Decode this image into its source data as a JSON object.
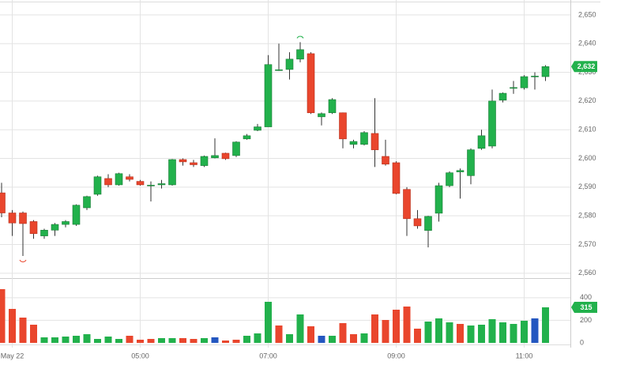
{
  "chart_data": {
    "type": "candlestick",
    "categories": [
      null,
      "May 22",
      null,
      null,
      null,
      null,
      null,
      null,
      null,
      null,
      null,
      null,
      null,
      "05:00",
      null,
      null,
      null,
      null,
      null,
      null,
      null,
      null,
      null,
      null,
      null,
      "07:00",
      null,
      null,
      null,
      null,
      null,
      null,
      null,
      null,
      null,
      null,
      null,
      "09:00",
      null,
      null,
      null,
      null,
      null,
      null,
      null,
      null,
      null,
      null,
      null,
      "11:00",
      null,
      null
    ],
    "open": [
      2588,
      2581,
      2581,
      2578,
      2573,
      2575,
      2577,
      2577,
      2582.8,
      2587.5,
      2593,
      2590.8,
      2593.6,
      2592,
      2590.5,
      2590.8,
      2590.8,
      2599.6,
      2598.5,
      2597.5,
      2600.2,
      2601.8,
      2601,
      2606.8,
      2609.8,
      2611,
      2630.7,
      2631,
      2634.6,
      2636.5,
      2614.5,
      2615.9,
      2615.9,
      2604.9,
      2604.9,
      2608.7,
      2600.7,
      2598.5,
      2589.2,
      2579,
      2574.9,
      2580.9,
      2590.5,
      2595.3,
      2594,
      2603.5,
      2604.3,
      2620.3,
      2624.5,
      2624.6,
      2628.5,
      2628.5
    ],
    "high": [
      2591.5,
      2582,
      2581.5,
      2578.5,
      2575.5,
      2577.5,
      2578.5,
      2584,
      2587,
      2594,
      2594.5,
      2595,
      2594.5,
      2592.5,
      2592,
      2592.5,
      2599.8,
      2600,
      2599.5,
      2601,
      2607,
      2602,
      2606,
      2608.5,
      2612,
      2636,
      2640,
      2637,
      2640.5,
      2637,
      2616,
      2621,
      2616,
      2606.5,
      2609.5,
      2621,
      2606.5,
      2599,
      2590,
      2582,
      2580,
      2591.5,
      2595.5,
      2596.5,
      2603.5,
      2610,
      2624,
      2623,
      2627,
      2629,
      2630,
      2632.5
    ],
    "low": [
      2579.5,
      2573,
      2566,
      2572,
      2572,
      2573,
      2576,
      2576.5,
      2582,
      2587,
      2590,
      2590.5,
      2592,
      2590.5,
      2585,
      2589.5,
      2590.5,
      2597.5,
      2597,
      2597,
      2600,
      2599.5,
      2600.5,
      2606.5,
      2609.5,
      2611,
      2630.5,
      2627.5,
      2633.5,
      2615.5,
      2611.5,
      2615.5,
      2603.5,
      2603.5,
      2604.5,
      2597,
      2597.5,
      2587.5,
      2573,
      2575.5,
      2569,
      2578,
      2590,
      2586,
      2591,
      2603,
      2603.5,
      2619.5,
      2622.5,
      2624,
      2624,
      2627
    ],
    "close": [
      2581,
      2577.5,
      2577.3,
      2573.8,
      2575,
      2577,
      2578,
      2583.7,
      2586.7,
      2593.6,
      2590.8,
      2594.7,
      2592.7,
      2590.8,
      2590.7,
      2591.2,
      2599.6,
      2598.8,
      2597.8,
      2600.7,
      2601,
      2599.9,
      2605.7,
      2607.9,
      2611,
      2632.7,
      2630.9,
      2634.6,
      2637.9,
      2615.9,
      2615.6,
      2620.5,
      2606.8,
      2605.9,
      2609,
      2603,
      2598,
      2587.8,
      2579,
      2576.5,
      2579.8,
      2590.5,
      2595,
      2595.8,
      2603,
      2607.9,
      2620,
      2622.7,
      2624.7,
      2628.5,
      2628.7,
      2632
    ],
    "volume": [
      476,
      301,
      224,
      161,
      49,
      49,
      56,
      63,
      77,
      35,
      56,
      35,
      63,
      28,
      35,
      42,
      42,
      42,
      35,
      42,
      49,
      21,
      28,
      63,
      84,
      364,
      154,
      77,
      252,
      147,
      63,
      63,
      175,
      77,
      84,
      252,
      203,
      294,
      322,
      126,
      189,
      217,
      182,
      168,
      154,
      161,
      210,
      182,
      168,
      196,
      217,
      315
    ],
    "volume_colors": [
      "#e9462d",
      "#e9462d",
      "#e9462d",
      "#e9462d",
      "#22b14c",
      "#22b14c",
      "#22b14c",
      "#22b14c",
      "#22b14c",
      "#22b14c",
      "#22b14c",
      "#22b14c",
      "#e9462d",
      "#e9462d",
      "#e9462d",
      "#22b14c",
      "#22b14c",
      "#e9462d",
      "#e9462d",
      "#22b14c",
      "#2457c0",
      "#e9462d",
      "#e9462d",
      "#22b14c",
      "#22b14c",
      "#22b14c",
      "#e9462d",
      "#22b14c",
      "#22b14c",
      "#e9462d",
      "#2457c0",
      "#22b14c",
      "#e9462d",
      "#e9462d",
      "#22b14c",
      "#e9462d",
      "#e9462d",
      "#e9462d",
      "#e9462d",
      "#e9462d",
      "#22b14c",
      "#22b14c",
      "#22b14c",
      "#e9462d",
      "#22b14c",
      "#22b14c",
      "#22b14c",
      "#22b14c",
      "#22b14c",
      "#22b14c",
      "#2457c0",
      "#22b14c"
    ],
    "up_color": "#22b14c",
    "down_color": "#e9462d",
    "ylim": [
      2558.3,
      2655.2
    ],
    "yticks": [
      {
        "value": 2560,
        "label": "2,560"
      },
      {
        "value": 2570,
        "label": "2,570"
      },
      {
        "value": 2580,
        "label": "2,580"
      },
      {
        "value": 2590,
        "label": "2,590"
      },
      {
        "value": 2600,
        "label": "2,600"
      },
      {
        "value": 2610,
        "label": "2,610"
      },
      {
        "value": 2620,
        "label": "2,620"
      },
      {
        "value": 2630,
        "label": "2,630"
      },
      {
        "value": 2640,
        "label": "2,640"
      },
      {
        "value": 2650,
        "label": "2,650"
      }
    ],
    "y2lim": [
      -42,
      574
    ],
    "y2ticks": [
      0,
      200,
      400
    ],
    "last_price_label": "2,632",
    "grid": true
  }
}
